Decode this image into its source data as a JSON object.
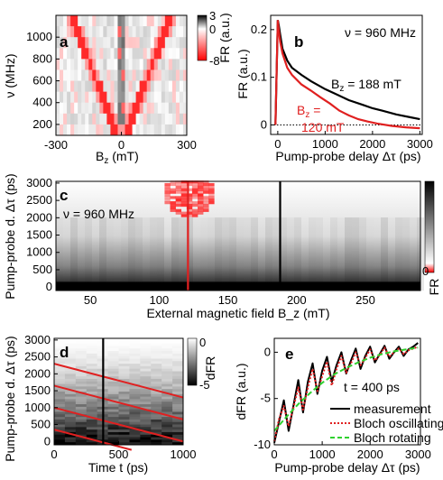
{
  "figure": "multi-panel",
  "chart_data": [
    {
      "panel": "a",
      "type": "heatmap",
      "panel_label": "a",
      "xlabel": "B_z (mT)",
      "ylabel": "ν (MHz)",
      "xticks": [
        "-300",
        "0",
        "300"
      ],
      "yticks": [
        "200",
        "400",
        "600",
        "800",
        "1000"
      ],
      "xlim": [
        -300,
        300
      ],
      "ylim": [
        100,
        1200
      ],
      "colorbar": {
        "label": "FR (a.u.)",
        "ticks": [
          "3",
          "0",
          "-8"
        ],
        "range": [
          -8,
          3
        ]
      },
      "feature": "V-shaped red resonance |B_z| proportional to ν, vertex at B_z = 0"
    },
    {
      "panel": "b",
      "type": "line",
      "panel_label": "b",
      "annotation": "ν = 960 MHz",
      "xlabel": "Pump-probe delay Δτ (ps)",
      "ylabel": "FR (a.u.)",
      "xticks": [
        "0",
        "1000",
        "2000",
        "3000"
      ],
      "yticks": [
        "0",
        "0.1",
        "0.2"
      ],
      "xlim": [
        -150,
        3050
      ],
      "ylim": [
        -0.02,
        0.23
      ],
      "series": [
        {
          "name": "B_z = 188 mT",
          "label_prefix": "B",
          "label_sub": "z",
          "label_suffix": " = 188 mT",
          "color": "#000000",
          "x": [
            -50,
            0,
            20,
            50,
            100,
            200,
            300,
            500,
            700,
            1000,
            1200,
            1500,
            1800,
            2000,
            2200,
            2500,
            2800,
            3000
          ],
          "y": [
            0.0,
            0.22,
            0.21,
            0.19,
            0.16,
            0.135,
            0.12,
            0.105,
            0.092,
            0.075,
            0.066,
            0.052,
            0.042,
            0.035,
            0.03,
            0.022,
            0.016,
            0.012
          ]
        },
        {
          "name": "B_z = 120 mT",
          "label_prefix": "B",
          "label_sub": "z",
          "label_line1": " =",
          "label_line2": "120 mT",
          "color": "#e02020",
          "x": [
            -50,
            0,
            20,
            50,
            100,
            200,
            300,
            500,
            700,
            900,
            1100,
            1300,
            1500,
            1700,
            1900,
            2100,
            2400,
            2700,
            3000
          ],
          "y": [
            0.0,
            0.22,
            0.2,
            0.175,
            0.15,
            0.12,
            0.105,
            0.085,
            0.072,
            0.058,
            0.045,
            0.03,
            0.02,
            0.012,
            0.007,
            0.003,
            -0.002,
            -0.005,
            -0.007
          ]
        }
      ],
      "zero_line": "dotted"
    },
    {
      "panel": "c",
      "type": "heatmap",
      "panel_label": "c",
      "annotation": "ν = 960 MHz",
      "xlabel": "External magnetic field B_z (mT)",
      "ylabel": "Pump-probe d. Δτ (ps)",
      "xticks": [
        "50",
        "100",
        "150",
        "200",
        "250"
      ],
      "yticks": [
        "0",
        "500",
        "1000",
        "1500",
        "2000",
        "2500",
        "3000"
      ],
      "xlim": [
        25,
        290
      ],
      "ylim": [
        -100,
        3050
      ],
      "colorbar": {
        "label": "FR",
        "ticks": [
          "0"
        ]
      },
      "markers": [
        {
          "type": "vline",
          "x": 121,
          "color": "#e02020"
        },
        {
          "type": "vline",
          "x": 188,
          "color": "#000000"
        }
      ]
    },
    {
      "panel": "d",
      "type": "heatmap",
      "panel_label": "d",
      "xlabel": "Time t (ps)",
      "ylabel": "Pump-probe d. Δτ (ps)",
      "xticks": [
        "0",
        "500",
        "1000"
      ],
      "yticks": [
        "0",
        "500",
        "1000",
        "1500",
        "2000",
        "2500",
        "3000"
      ],
      "xlim": [
        0,
        1000
      ],
      "ylim": [
        -100,
        3050
      ],
      "colorbar": {
        "label": "dFR",
        "ticks": [
          "0",
          "-5"
        ],
        "range": [
          -5,
          0
        ]
      },
      "red_lines": [
        {
          "x": [
            0,
            1000
          ],
          "y": [
            2300,
            1300
          ]
        },
        {
          "x": [
            0,
            1000
          ],
          "y": [
            1650,
            650
          ]
        },
        {
          "x": [
            0,
            1000
          ],
          "y": [
            1000,
            0
          ]
        },
        {
          "x": [
            0,
            600
          ],
          "y": [
            350,
            -250
          ]
        }
      ],
      "vline_x": 380
    },
    {
      "panel": "e",
      "type": "line",
      "panel_label": "e",
      "annotation": "t = 400 ps",
      "xlabel": "Pump-probe delay Δτ (ps)",
      "ylabel": "dFR (a.u.)",
      "xticks": [
        "0",
        "1000",
        "2000",
        "3000"
      ],
      "yticks": [
        "0",
        "-5",
        "-10"
      ],
      "xlim": [
        0,
        3050
      ],
      "ylim": [
        -10,
        1.5
      ],
      "legend": "bottom-right",
      "series": [
        {
          "name": "measurement",
          "color": "#000000",
          "style": "solid",
          "x": [
            0,
            100,
            200,
            300,
            400,
            500,
            600,
            700,
            800,
            900,
            1000,
            1100,
            1200,
            1300,
            1400,
            1500,
            1600,
            1700,
            1800,
            1900,
            2000,
            2100,
            2200,
            2300,
            2400,
            2500,
            2600,
            2700,
            2800,
            2900,
            3000
          ],
          "y": [
            -9.8,
            -7.5,
            -5.2,
            -8.5,
            -5.8,
            -3.0,
            -6.5,
            -3.2,
            -1.2,
            -4.5,
            -2.0,
            -0.5,
            -3.2,
            -1.4,
            0.0,
            -2.3,
            -0.9,
            0.4,
            -1.8,
            -0.4,
            0.6,
            -1.1,
            -0.2,
            0.7,
            -0.7,
            0.0,
            0.6,
            -0.4,
            0.3,
            0.6,
            1.0
          ]
        },
        {
          "name": "Bloch oscillating",
          "color": "#e02020",
          "style": "dotted",
          "x": [
            0,
            100,
            200,
            300,
            400,
            500,
            600,
            700,
            800,
            900,
            1000,
            1100,
            1200,
            1300,
            1400,
            1500,
            1600,
            1700,
            1800,
            1900,
            2000,
            2100,
            2200,
            2300,
            2400,
            2500,
            2600,
            2700,
            2800,
            2900,
            3000
          ],
          "y": [
            -9.6,
            -7.2,
            -5.8,
            -8.0,
            -6.0,
            -3.8,
            -6.2,
            -3.8,
            -1.8,
            -4.2,
            -2.6,
            -1.0,
            -3.6,
            -1.8,
            -0.4,
            -2.2,
            -1.2,
            0.0,
            -1.4,
            -0.6,
            0.3,
            -0.9,
            -0.3,
            0.5,
            -0.5,
            0.0,
            0.4,
            -0.2,
            0.2,
            0.4,
            0.6
          ]
        },
        {
          "name": "Bloch rotating",
          "color": "#2fd12f",
          "style": "dashed",
          "x": [
            0,
            250,
            500,
            750,
            1000,
            1250,
            1500,
            1750,
            2000,
            2250,
            2500,
            2750,
            3000
          ],
          "y": [
            -8.5,
            -7.0,
            -5.6,
            -4.4,
            -3.3,
            -2.4,
            -1.7,
            -1.1,
            -0.6,
            -0.2,
            0.1,
            0.3,
            0.5
          ]
        }
      ]
    }
  ]
}
